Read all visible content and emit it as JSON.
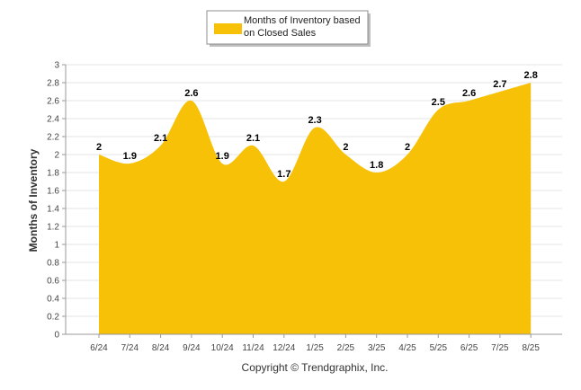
{
  "chart_data": {
    "type": "area",
    "categories": [
      "6/24",
      "7/24",
      "8/24",
      "9/24",
      "10/24",
      "11/24",
      "12/24",
      "1/25",
      "2/25",
      "3/25",
      "4/25",
      "5/25",
      "6/25",
      "7/25",
      "8/25"
    ],
    "series": [
      {
        "name": "Months of Inventory based on Closed Sales",
        "values": [
          2,
          1.9,
          2.1,
          2.6,
          1.9,
          2.1,
          1.7,
          2.3,
          2,
          1.8,
          2,
          2.5,
          2.6,
          2.7,
          2.8
        ]
      }
    ],
    "data_labels": [
      "2",
      "1.9",
      "2.1",
      "2.6",
      "1.9",
      "2.1",
      "1.7",
      "2.3",
      "2",
      "1.8",
      "2",
      "2.5",
      "2.6",
      "2.7",
      "2.8"
    ],
    "yticks": [
      "0",
      "0.2",
      "0.4",
      "0.6",
      "0.8",
      "1",
      "1.2",
      "1.4",
      "1.6",
      "1.8",
      "2",
      "2.2",
      "2.4",
      "2.6",
      "2.8",
      "3"
    ],
    "ylim": [
      0,
      3
    ],
    "ylabel": "Months of Inventory",
    "xlabel": "",
    "title": "",
    "grid": true,
    "legend": {
      "position": "top-center",
      "lines": [
        "Months of Inventory based",
        "on Closed Sales"
      ]
    },
    "colors": {
      "fill": "#F7C107",
      "grid": "#e6e6e6",
      "axis": "#999999"
    }
  },
  "footer": {
    "copyright": "Copyright © Trendgraphix, Inc."
  }
}
